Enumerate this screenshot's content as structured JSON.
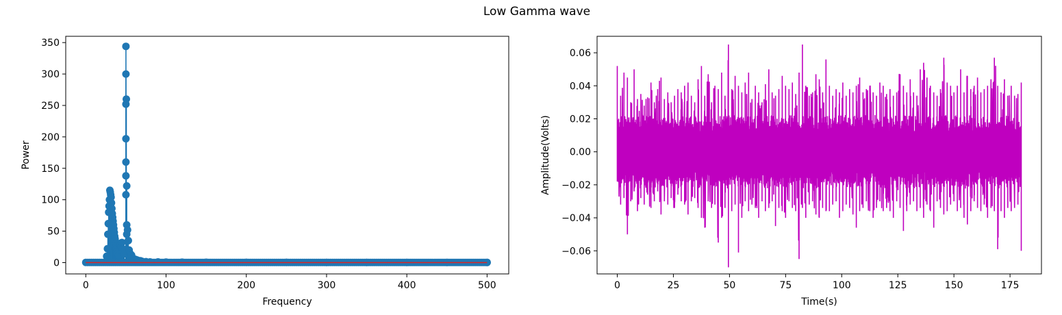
{
  "figure": {
    "title": "Low Gamma wave"
  },
  "chart_data": [
    {
      "type": "stem",
      "xlabel": "Frequency",
      "ylabel": "Power",
      "xlim": [
        -25,
        527
      ],
      "ylim": [
        -18,
        360
      ],
      "xticks": [
        0,
        100,
        200,
        300,
        400,
        500
      ],
      "yticks": [
        0,
        50,
        100,
        150,
        200,
        250,
        300,
        350
      ],
      "colors": {
        "markers": "#1f77b4",
        "stems": "#1f77b4",
        "baseline": "#d62728"
      },
      "baseline": 0,
      "points": [
        [
          30,
          115
        ],
        [
          30.5,
          112
        ],
        [
          31,
          108
        ],
        [
          31.5,
          104
        ],
        [
          29.5,
          100
        ],
        [
          32,
          95
        ],
        [
          29,
          90
        ],
        [
          32.5,
          86
        ],
        [
          28.5,
          80
        ],
        [
          33,
          78
        ],
        [
          33.5,
          72
        ],
        [
          34,
          66
        ],
        [
          28,
          62
        ],
        [
          34.5,
          60
        ],
        [
          35,
          54
        ],
        [
          35.5,
          48
        ],
        [
          27.5,
          45
        ],
        [
          36,
          42
        ],
        [
          36.5,
          38
        ],
        [
          37,
          34
        ],
        [
          37.5,
          30
        ],
        [
          38,
          26
        ],
        [
          38.5,
          22
        ],
        [
          27,
          22
        ],
        [
          39,
          18
        ],
        [
          40,
          15
        ],
        [
          41,
          12
        ],
        [
          42,
          20
        ],
        [
          43,
          28
        ],
        [
          44,
          24
        ],
        [
          45,
          32
        ],
        [
          46,
          22
        ],
        [
          47,
          18
        ],
        [
          48,
          14
        ],
        [
          26,
          10
        ],
        [
          50,
          344
        ],
        [
          50,
          300
        ],
        [
          50.5,
          260
        ],
        [
          50,
          252
        ],
        [
          50,
          197
        ],
        [
          50,
          160
        ],
        [
          50,
          138
        ],
        [
          51,
          122
        ],
        [
          50,
          108
        ],
        [
          51,
          60
        ],
        [
          52,
          52
        ],
        [
          51,
          45
        ],
        [
          53,
          35
        ],
        [
          54,
          20
        ],
        [
          55,
          15
        ],
        [
          56,
          10
        ],
        [
          57,
          12
        ],
        [
          58,
          8
        ],
        [
          60,
          6
        ],
        [
          62,
          5
        ],
        [
          64,
          4
        ],
        [
          66,
          3
        ],
        [
          68,
          3
        ],
        [
          70,
          2
        ],
        [
          75,
          1.5
        ],
        [
          80,
          1
        ],
        [
          90,
          1
        ],
        [
          100,
          0.8
        ],
        [
          120,
          0.6
        ],
        [
          150,
          0.5
        ],
        [
          200,
          0.4
        ],
        [
          250,
          0.4
        ],
        [
          300,
          0.3
        ],
        [
          350,
          0.3
        ],
        [
          400,
          0.3
        ],
        [
          450,
          0.3
        ],
        [
          500,
          0.3
        ]
      ]
    },
    {
      "type": "line",
      "xlabel": "Time(s)",
      "ylabel": "Amplitude(Volts)",
      "xlim": [
        -9,
        189
      ],
      "ylim": [
        -0.074,
        0.07
      ],
      "xticks": [
        0,
        25,
        50,
        75,
        100,
        125,
        150,
        175
      ],
      "yticks": [
        0.06,
        0.04,
        0.02,
        0.0,
        -0.02,
        -0.04,
        -0.06
      ],
      "ytick_labels": [
        "0.06",
        "0.04",
        "0.02",
        "0.00",
        "−0.02",
        "−0.04",
        "−0.06"
      ],
      "color": "#bf00bf",
      "x": [
        0,
        1.5,
        3,
        4.5,
        6,
        7.5,
        9,
        10.5,
        12,
        13.5,
        15,
        16.5,
        18,
        19.5,
        21,
        22.5,
        24,
        25.5,
        27,
        28.5,
        30,
        31.5,
        33,
        34.5,
        36,
        37.5,
        39,
        40.5,
        42,
        43.5,
        45,
        46.5,
        48,
        49.5,
        51,
        52.5,
        54,
        55.5,
        57,
        58.5,
        60,
        61.5,
        63,
        64.5,
        66,
        67.5,
        69,
        70.5,
        72,
        73.5,
        75,
        76.5,
        78,
        79.5,
        81,
        82.5,
        84,
        85.5,
        87,
        88.5,
        90,
        91.5,
        93,
        94.5,
        96,
        97.5,
        99,
        100.5,
        102,
        103.5,
        105,
        106.5,
        108,
        109.5,
        111,
        112.5,
        114,
        115.5,
        117,
        118.5,
        120,
        121.5,
        123,
        124.5,
        126,
        127.5,
        129,
        130.5,
        132,
        133.5,
        135,
        136.5,
        138,
        139.5,
        141,
        142.5,
        144,
        145.5,
        147,
        148.5,
        150,
        151.5,
        153,
        154.5,
        156,
        157.5,
        159,
        160.5,
        162,
        163.5,
        165,
        166.5,
        168,
        169.5,
        171,
        172.5,
        174,
        175.5,
        177,
        178.5,
        180
      ],
      "y_max": [
        0.052,
        0.034,
        0.048,
        0.045,
        0.03,
        0.05,
        0.032,
        0.035,
        0.028,
        0.033,
        0.042,
        0.03,
        0.038,
        0.045,
        0.032,
        0.036,
        0.03,
        0.034,
        0.038,
        0.036,
        0.04,
        0.042,
        0.034,
        0.03,
        0.044,
        0.052,
        0.034,
        0.047,
        0.03,
        0.04,
        0.038,
        0.048,
        0.034,
        0.065,
        0.038,
        0.046,
        0.04,
        0.036,
        0.042,
        0.048,
        0.032,
        0.04,
        0.036,
        0.03,
        0.041,
        0.05,
        0.036,
        0.034,
        0.038,
        0.046,
        0.04,
        0.038,
        0.042,
        0.035,
        0.048,
        0.065,
        0.04,
        0.034,
        0.036,
        0.047,
        0.044,
        0.036,
        0.056,
        0.04,
        0.034,
        0.038,
        0.036,
        0.042,
        0.034,
        0.038,
        0.036,
        0.04,
        0.045,
        0.036,
        0.038,
        0.04,
        0.036,
        0.034,
        0.042,
        0.04,
        0.035,
        0.038,
        0.034,
        0.036,
        0.047,
        0.04,
        0.036,
        0.044,
        0.036,
        0.034,
        0.05,
        0.054,
        0.045,
        0.04,
        0.036,
        0.034,
        0.038,
        0.057,
        0.042,
        0.04,
        0.036,
        0.04,
        0.05,
        0.036,
        0.046,
        0.038,
        0.04,
        0.045,
        0.036,
        0.038,
        0.04,
        0.044,
        0.057,
        0.04,
        0.036,
        0.044,
        0.034,
        0.04,
        0.034,
        0.035,
        0.042
      ],
      "y_min": [
        -0.018,
        -0.032,
        -0.028,
        -0.05,
        -0.03,
        -0.024,
        -0.036,
        -0.028,
        -0.032,
        -0.026,
        -0.034,
        -0.03,
        -0.024,
        -0.038,
        -0.03,
        -0.032,
        -0.028,
        -0.034,
        -0.026,
        -0.03,
        -0.032,
        -0.038,
        -0.03,
        -0.028,
        -0.034,
        -0.04,
        -0.046,
        -0.03,
        -0.034,
        -0.032,
        -0.055,
        -0.04,
        -0.034,
        -0.07,
        -0.036,
        -0.032,
        -0.061,
        -0.04,
        -0.03,
        -0.036,
        -0.032,
        -0.034,
        -0.04,
        -0.03,
        -0.036,
        -0.034,
        -0.03,
        -0.045,
        -0.034,
        -0.036,
        -0.04,
        -0.03,
        -0.034,
        -0.036,
        -0.065,
        -0.034,
        -0.04,
        -0.032,
        -0.03,
        -0.038,
        -0.04,
        -0.034,
        -0.036,
        -0.036,
        -0.032,
        -0.03,
        -0.04,
        -0.036,
        -0.032,
        -0.034,
        -0.038,
        -0.046,
        -0.036,
        -0.034,
        -0.03,
        -0.036,
        -0.04,
        -0.034,
        -0.03,
        -0.036,
        -0.034,
        -0.036,
        -0.04,
        -0.03,
        -0.034,
        -0.048,
        -0.036,
        -0.032,
        -0.03,
        -0.036,
        -0.034,
        -0.04,
        -0.032,
        -0.036,
        -0.046,
        -0.03,
        -0.034,
        -0.038,
        -0.036,
        -0.032,
        -0.03,
        -0.036,
        -0.034,
        -0.04,
        -0.044,
        -0.036,
        -0.03,
        -0.034,
        -0.036,
        -0.032,
        -0.04,
        -0.034,
        -0.036,
        -0.059,
        -0.036,
        -0.04,
        -0.034,
        -0.036,
        -0.034,
        -0.032,
        -0.06
      ]
    }
  ]
}
